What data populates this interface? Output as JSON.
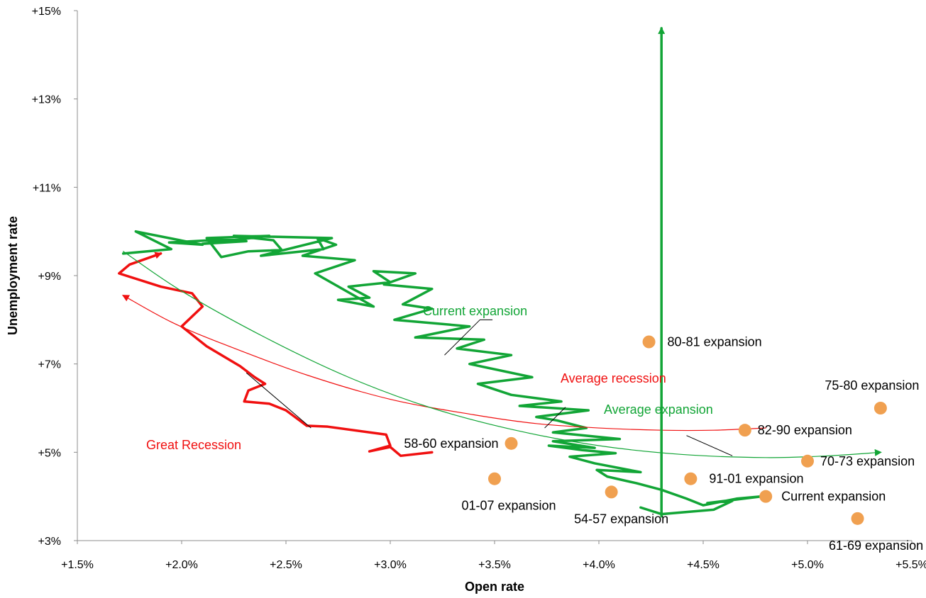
{
  "colors": {
    "green": "#12a536",
    "red": "#f01010",
    "orange": "#f0a050",
    "axis": "#8c8c8c",
    "text": "#000000"
  },
  "chart_data": {
    "type": "scatter",
    "xlabel": "Open rate",
    "ylabel": "Unemployment rate",
    "xlim": [
      1.5,
      5.5
    ],
    "ylim": [
      3,
      15
    ],
    "grid": false,
    "x_ticks": [
      1.5,
      2.0,
      2.5,
      3.0,
      3.5,
      4.0,
      4.5,
      5.0,
      5.5
    ],
    "x_tick_labels": [
      "+1.5%",
      "+2.0%",
      "+2.5%",
      "+3.0%",
      "+3.5%",
      "+4.0%",
      "+4.5%",
      "+5.0%",
      "+5.5%"
    ],
    "y_ticks": [
      3,
      5,
      7,
      9,
      11,
      13,
      15
    ],
    "y_tick_labels": [
      "+3%",
      "+5%",
      "+7%",
      "+9%",
      "+11%",
      "+13%",
      "+15%"
    ],
    "points": [
      {
        "label": "80-81 expansion",
        "x": 4.24,
        "y": 7.5
      },
      {
        "label": "75-80 expansion",
        "x": 5.35,
        "y": 6.0
      },
      {
        "label": "82-90 expansion",
        "x": 4.7,
        "y": 5.5
      },
      {
        "label": "58-60 expansion",
        "x": 3.58,
        "y": 5.2
      },
      {
        "label": "70-73 expansion",
        "x": 5.0,
        "y": 4.8
      },
      {
        "label": "01-07 expansion",
        "x": 3.5,
        "y": 4.4
      },
      {
        "label": "91-01 expansion",
        "x": 4.44,
        "y": 4.4
      },
      {
        "label": "54-57 expansion",
        "x": 4.06,
        "y": 4.1
      },
      {
        "label": "Current expansion",
        "x": 4.8,
        "y": 4.0
      },
      {
        "label": "61-69 expansion",
        "x": 5.24,
        "y": 3.5
      }
    ],
    "series": [
      {
        "name": "Current expansion",
        "x": [
          4.2,
          4.3,
          4.55,
          4.64,
          4.52,
          4.78,
          4.66,
          4.5,
          4.42,
          4.3,
          4.18,
          4.04,
          3.99,
          4.2,
          3.98,
          3.86,
          4.08,
          3.92,
          3.76,
          3.98,
          3.78,
          4.1,
          3.78,
          3.94,
          3.8,
          3.7,
          3.95,
          3.62,
          3.82,
          3.58,
          3.42,
          3.68,
          3.38,
          3.58,
          3.32,
          3.45,
          3.12,
          3.38,
          3.02,
          3.2,
          3.06,
          3.2,
          2.97,
          3.12,
          2.92,
          3.0,
          2.8,
          2.9,
          2.75,
          2.92,
          2.64,
          2.83,
          2.58,
          2.74,
          2.65,
          2.68,
          2.38,
          2.72,
          2.25,
          2.44,
          2.48,
          2.32,
          2.19,
          2.12,
          2.42,
          2.1,
          2.31,
          2.22,
          1.94,
          2.1,
          1.78,
          1.95,
          1.72
        ],
        "y": [
          3.75,
          3.6,
          3.7,
          3.9,
          3.85,
          4.0,
          3.95,
          3.8,
          3.95,
          4.15,
          4.3,
          4.45,
          4.6,
          4.55,
          4.75,
          4.9,
          4.98,
          5.05,
          5.15,
          5.1,
          5.25,
          5.3,
          5.45,
          5.55,
          5.72,
          5.8,
          5.95,
          6.05,
          6.15,
          6.3,
          6.55,
          6.7,
          7.0,
          7.2,
          7.35,
          7.55,
          7.6,
          7.85,
          8.0,
          8.25,
          8.35,
          8.7,
          8.8,
          9.05,
          9.1,
          8.85,
          8.75,
          8.5,
          8.45,
          8.3,
          9.05,
          9.35,
          9.45,
          9.7,
          9.85,
          9.6,
          9.45,
          9.85,
          9.9,
          9.8,
          9.58,
          9.55,
          9.42,
          9.85,
          9.9,
          9.72,
          9.78,
          9.82,
          9.75,
          9.7,
          10.0,
          9.6,
          9.5
        ],
        "arrow_end": "none"
      },
      {
        "name": "Great Recession",
        "x": [
          3.2,
          3.05,
          3.0,
          2.9,
          3.0,
          2.98,
          2.7,
          2.6,
          2.5,
          2.42,
          2.3,
          2.32,
          2.4,
          2.35,
          2.28,
          2.12,
          2.0,
          2.1,
          2.05,
          1.9,
          1.7,
          1.75,
          1.9
        ],
        "y": [
          5.0,
          4.92,
          5.12,
          5.02,
          5.15,
          5.4,
          5.58,
          5.6,
          5.95,
          6.1,
          6.15,
          6.4,
          6.55,
          6.7,
          6.95,
          7.4,
          7.85,
          8.3,
          8.6,
          8.75,
          9.05,
          9.25,
          9.5
        ],
        "arrow_end": "end"
      },
      {
        "name": "Average recession",
        "x": [
          4.8,
          4.55,
          4.3,
          4.0,
          3.7,
          3.4,
          3.0,
          2.6,
          2.2,
          1.95,
          1.72
        ],
        "y": [
          5.55,
          5.5,
          5.5,
          5.55,
          5.65,
          5.85,
          6.2,
          6.75,
          7.45,
          7.95,
          8.55
        ],
        "arrow_end": "end"
      },
      {
        "name": "Average expansion",
        "x": [
          1.72,
          2.0,
          2.4,
          2.8,
          3.2,
          3.6,
          4.0,
          4.4,
          4.8,
          5.1,
          5.35
        ],
        "y": [
          9.55,
          8.65,
          7.6,
          6.7,
          6.0,
          5.5,
          5.15,
          4.95,
          4.88,
          4.92,
          5.0
        ],
        "arrow_end": "end"
      },
      {
        "name": "",
        "x": [
          4.3,
          4.3
        ],
        "y": [
          3.55,
          14.6
        ],
        "arrow_end": "end"
      }
    ],
    "annotations": [
      {
        "text": "Current expansion",
        "color": "green"
      },
      {
        "text": "Great Recession",
        "color": "red"
      },
      {
        "text": "Average recession",
        "color": "red"
      },
      {
        "text": "Average expansion",
        "color": "green"
      }
    ]
  }
}
